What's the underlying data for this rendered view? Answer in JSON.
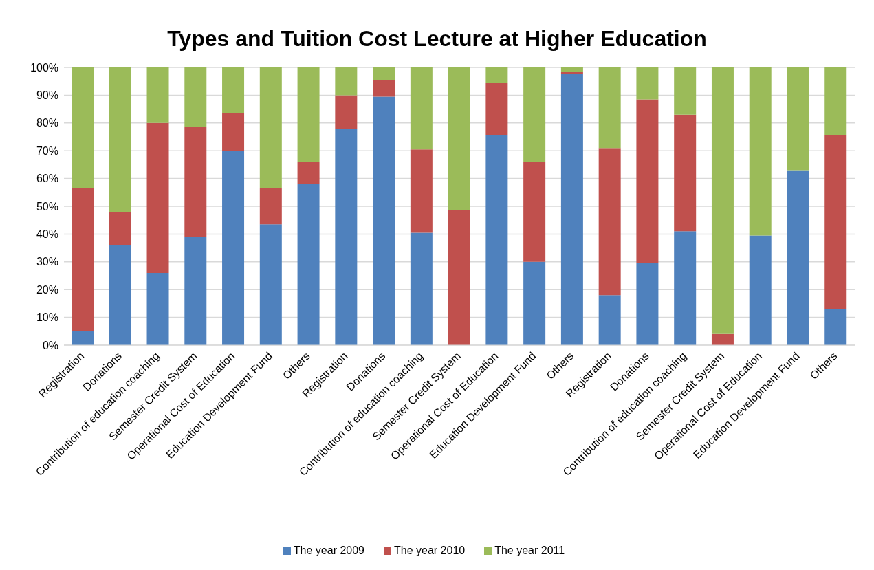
{
  "chart_data": {
    "type": "bar",
    "title": "Types and Tuition Cost Lecture at Higher Education",
    "categories": [
      "Registration",
      "Donations",
      "Contribution of education coaching",
      "Semester Credit System",
      "Operational Cost of Education",
      "Education Development Fund",
      "Others",
      "Registration",
      "Donations",
      "Contribution of education coaching",
      "Semester Credit System",
      "Operational Cost of Education",
      "Education Development Fund",
      "Others",
      "Registration",
      "Donations",
      "Contribution of education coaching",
      "Semester Credit System",
      "Operational Cost of Education",
      "Education Development Fund",
      "Others"
    ],
    "stacked": true,
    "series": [
      {
        "name": "The year 2009",
        "color": "#4f81bd",
        "values": [
          5,
          36,
          26,
          39,
          70,
          43.5,
          58,
          78,
          89.5,
          40.5,
          null,
          75.5,
          30,
          97.5,
          18,
          29.5,
          41,
          0,
          39.5,
          63,
          13
        ]
      },
      {
        "name": "The year 2010",
        "color": "#c0504d",
        "values": [
          51.5,
          12,
          54,
          39.5,
          13.5,
          13,
          8,
          12,
          6,
          30,
          48.5,
          19,
          36,
          1,
          53,
          59,
          42,
          4,
          0,
          0,
          62.5
        ]
      },
      {
        "name": "The year 2011",
        "color": "#9bbb59",
        "values": [
          43.5,
          52,
          20,
          21.5,
          16.5,
          43.5,
          34,
          10,
          4.5,
          29.5,
          51.5,
          5.5,
          34,
          1.5,
          29,
          11.5,
          17,
          96,
          60.5,
          37,
          24.5
        ]
      }
    ],
    "ylim": [
      0,
      100
    ],
    "yticks": [
      {
        "value": 0,
        "label": "0%"
      },
      {
        "value": 10,
        "label": "10%"
      },
      {
        "value": 20,
        "label": "20%"
      },
      {
        "value": 30,
        "label": "30%"
      },
      {
        "value": 40,
        "label": "40%"
      },
      {
        "value": 50,
        "label": "50%"
      },
      {
        "value": 60,
        "label": "60%"
      },
      {
        "value": 70,
        "label": "70%"
      },
      {
        "value": 80,
        "label": "80%"
      },
      {
        "value": 90,
        "label": "90%"
      },
      {
        "value": 100,
        "label": "100%"
      }
    ],
    "grid": "y",
    "legend": "bottom"
  }
}
